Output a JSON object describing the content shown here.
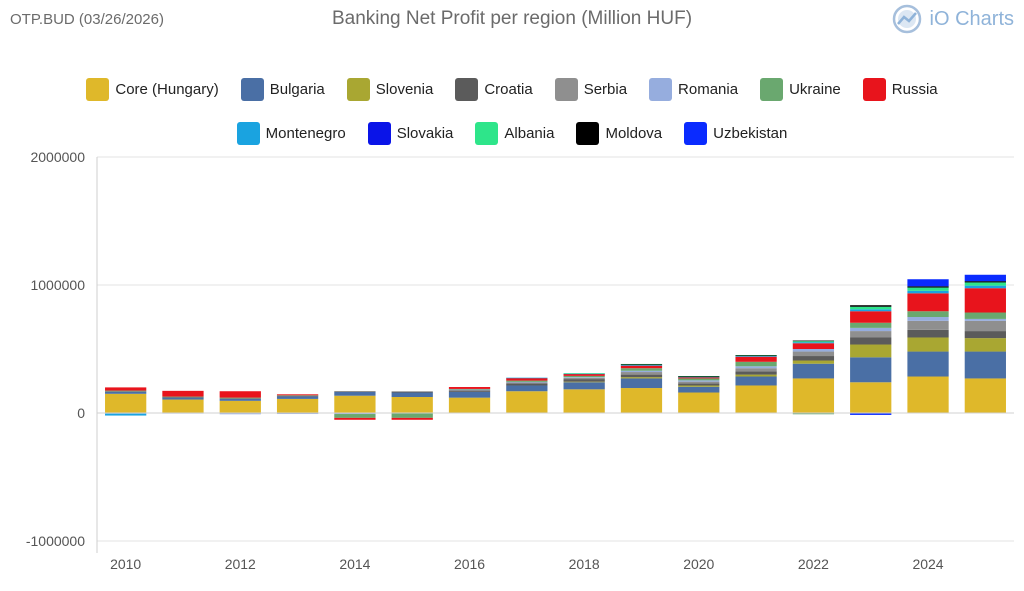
{
  "header": {
    "ticker": "OTP.BUD (03/26/2026)",
    "title": "Banking Net Profit per region (Million HUF)",
    "brand": "iO Charts"
  },
  "chart_data": {
    "type": "bar",
    "stacked": true,
    "title": "Banking Net Profit per region (Million HUF)",
    "xlabel": "",
    "ylabel": "",
    "ylim": [
      -1000000,
      2000000
    ],
    "yticks": [
      "2000000",
      "1000000",
      "0",
      "-1000000"
    ],
    "xticks": [
      "2010",
      "2012",
      "2014",
      "2016",
      "2018",
      "2020",
      "2022",
      "2024"
    ],
    "grid": true,
    "legend_position": "top",
    "categories": [
      "2010",
      "2011",
      "2012",
      "2013",
      "2014",
      "2015",
      "2016",
      "2017",
      "2018",
      "2019",
      "2020",
      "2021",
      "2022",
      "2023",
      "2024",
      "2025"
    ],
    "series": [
      {
        "name": "Core (Hungary)",
        "color": "#dfb82a",
        "values": [
          150000,
          105000,
          95000,
          110000,
          135000,
          125000,
          120000,
          170000,
          185000,
          195000,
          160000,
          215000,
          270000,
          240000,
          285000,
          270000
        ]
      },
      {
        "name": "Bulgaria",
        "color": "#4a6fa5",
        "values": [
          15000,
          15000,
          15000,
          20000,
          30000,
          35000,
          45000,
          45000,
          55000,
          75000,
          45000,
          70000,
          115000,
          195000,
          195000,
          210000
        ]
      },
      {
        "name": "Slovenia",
        "color": "#a9a732",
        "values": [
          0,
          0,
          0,
          0,
          0,
          0,
          0,
          0,
          5000,
          10000,
          10000,
          15000,
          25000,
          100000,
          110000,
          105000
        ]
      },
      {
        "name": "Croatia",
        "color": "#5b5b5b",
        "values": [
          5000,
          5000,
          5000,
          5000,
          5000,
          8000,
          10000,
          15000,
          20000,
          20000,
          15000,
          25000,
          35000,
          55000,
          60000,
          55000
        ]
      },
      {
        "name": "Serbia",
        "color": "#8f8f8f",
        "values": [
          0,
          0,
          0,
          -3000,
          -3000,
          0,
          5000,
          8000,
          10000,
          20000,
          15000,
          25000,
          35000,
          50000,
          70000,
          80000
        ]
      },
      {
        "name": "Romania",
        "color": "#96adde",
        "values": [
          -5000,
          -5000,
          -10000,
          -5000,
          -5000,
          -3000,
          3000,
          5000,
          5000,
          10000,
          10000,
          15000,
          20000,
          25000,
          30000,
          15000
        ]
      },
      {
        "name": "Ukraine",
        "color": "#6aa86f",
        "values": [
          5000,
          3000,
          5000,
          3000,
          -30000,
          -35000,
          5000,
          10000,
          10000,
          20000,
          15000,
          35000,
          -10000,
          40000,
          45000,
          50000
        ]
      },
      {
        "name": "Russia",
        "color": "#e8141c",
        "values": [
          25000,
          45000,
          50000,
          8000,
          -15000,
          -15000,
          15000,
          20000,
          15000,
          20000,
          10000,
          40000,
          45000,
          90000,
          140000,
          190000
        ]
      },
      {
        "name": "Montenegro",
        "color": "#1aa3e0",
        "values": [
          -15000,
          0,
          0,
          0,
          0,
          0,
          0,
          3000,
          3000,
          5000,
          3000,
          5000,
          8000,
          15000,
          20000,
          20000
        ]
      },
      {
        "name": "Slovakia",
        "color": "#0a14e8",
        "values": [
          0,
          0,
          0,
          0,
          0,
          0,
          0,
          0,
          0,
          0,
          0,
          0,
          0,
          0,
          0,
          0
        ]
      },
      {
        "name": "Albania",
        "color": "#2ee58a",
        "values": [
          0,
          0,
          0,
          0,
          0,
          0,
          0,
          0,
          3000,
          5000,
          3000,
          5000,
          8000,
          20000,
          25000,
          25000
        ]
      },
      {
        "name": "Moldova",
        "color": "#000000",
        "values": [
          0,
          0,
          0,
          0,
          0,
          0,
          0,
          0,
          0,
          3000,
          3000,
          3000,
          5000,
          12000,
          10000,
          10000
        ]
      },
      {
        "name": "Uzbekistan",
        "color": "#0a2bff",
        "values": [
          0,
          0,
          0,
          0,
          0,
          0,
          0,
          0,
          0,
          0,
          0,
          0,
          0,
          -15000,
          55000,
          50000
        ]
      }
    ]
  }
}
